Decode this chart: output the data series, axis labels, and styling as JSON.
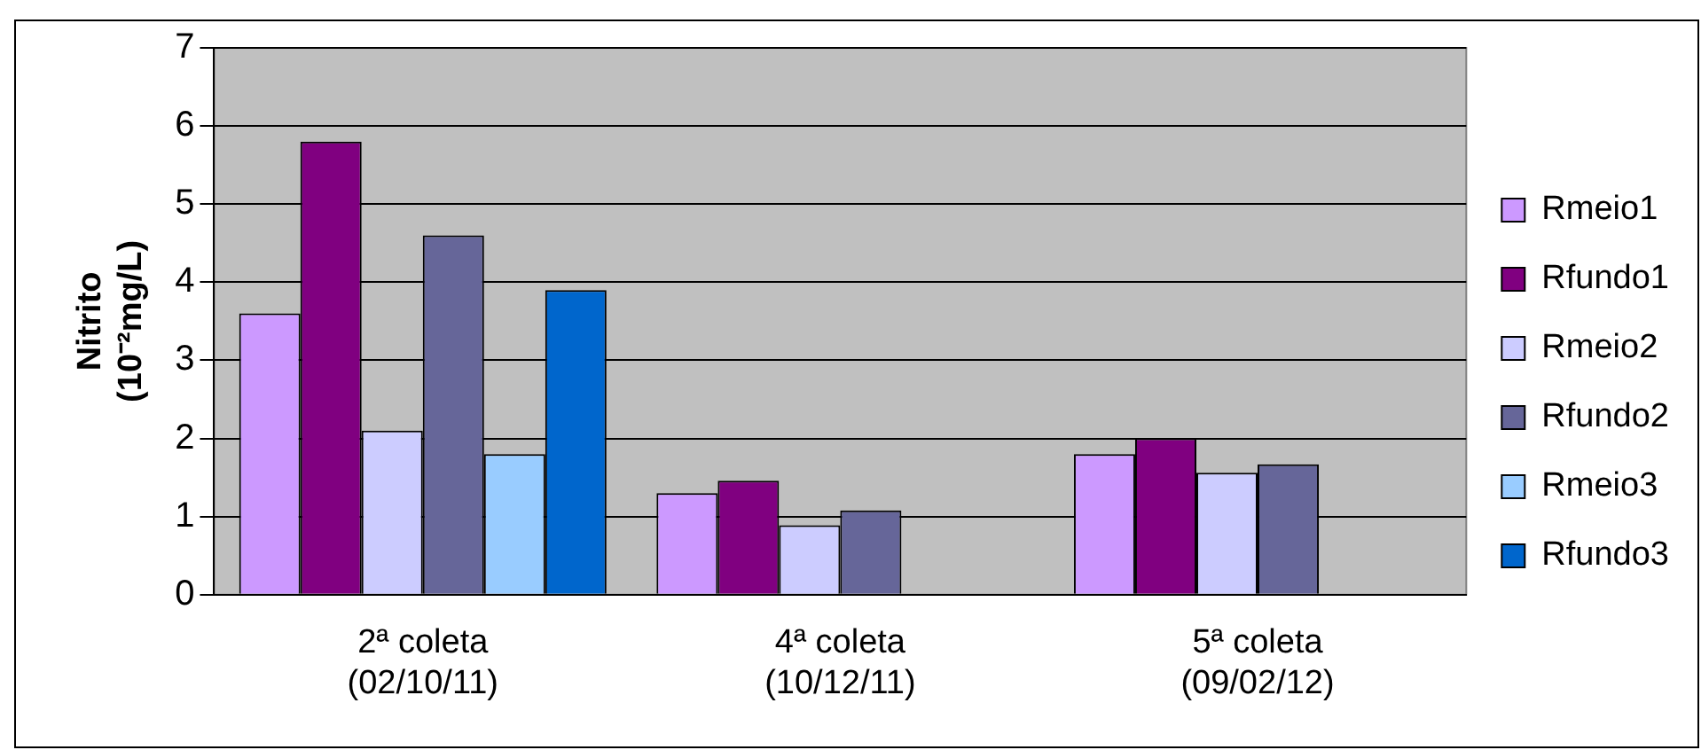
{
  "chart_data": {
    "type": "bar",
    "ylabel": "Nitrito\n(10⁻²mg/L)",
    "categories": [
      "2ª coleta\n(02/10/11)",
      "4ª coleta\n(10/12/11)",
      "5ª coleta\n(09/02/12)"
    ],
    "series": [
      {
        "name": "Rmeio1",
        "color": "#cc99ff",
        "values": [
          3.6,
          1.3,
          1.8
        ]
      },
      {
        "name": "Rfundo1",
        "color": "#800080",
        "values": [
          5.8,
          1.46,
          2.0
        ]
      },
      {
        "name": "Rmeio2",
        "color": "#ccccff",
        "values": [
          2.1,
          0.89,
          1.56
        ]
      },
      {
        "name": "Rfundo2",
        "color": "#666699",
        "values": [
          4.6,
          1.08,
          1.67
        ]
      },
      {
        "name": "Rmeio3",
        "color": "#99ccff",
        "values": [
          1.8,
          null,
          null
        ]
      },
      {
        "name": "Rfundo3",
        "color": "#0066cc",
        "values": [
          3.9,
          null,
          null
        ]
      }
    ],
    "ylim": [
      0,
      7
    ],
    "yticks": [
      0,
      1,
      2,
      3,
      4,
      5,
      6,
      7
    ],
    "grid": "y",
    "legend": "right"
  }
}
